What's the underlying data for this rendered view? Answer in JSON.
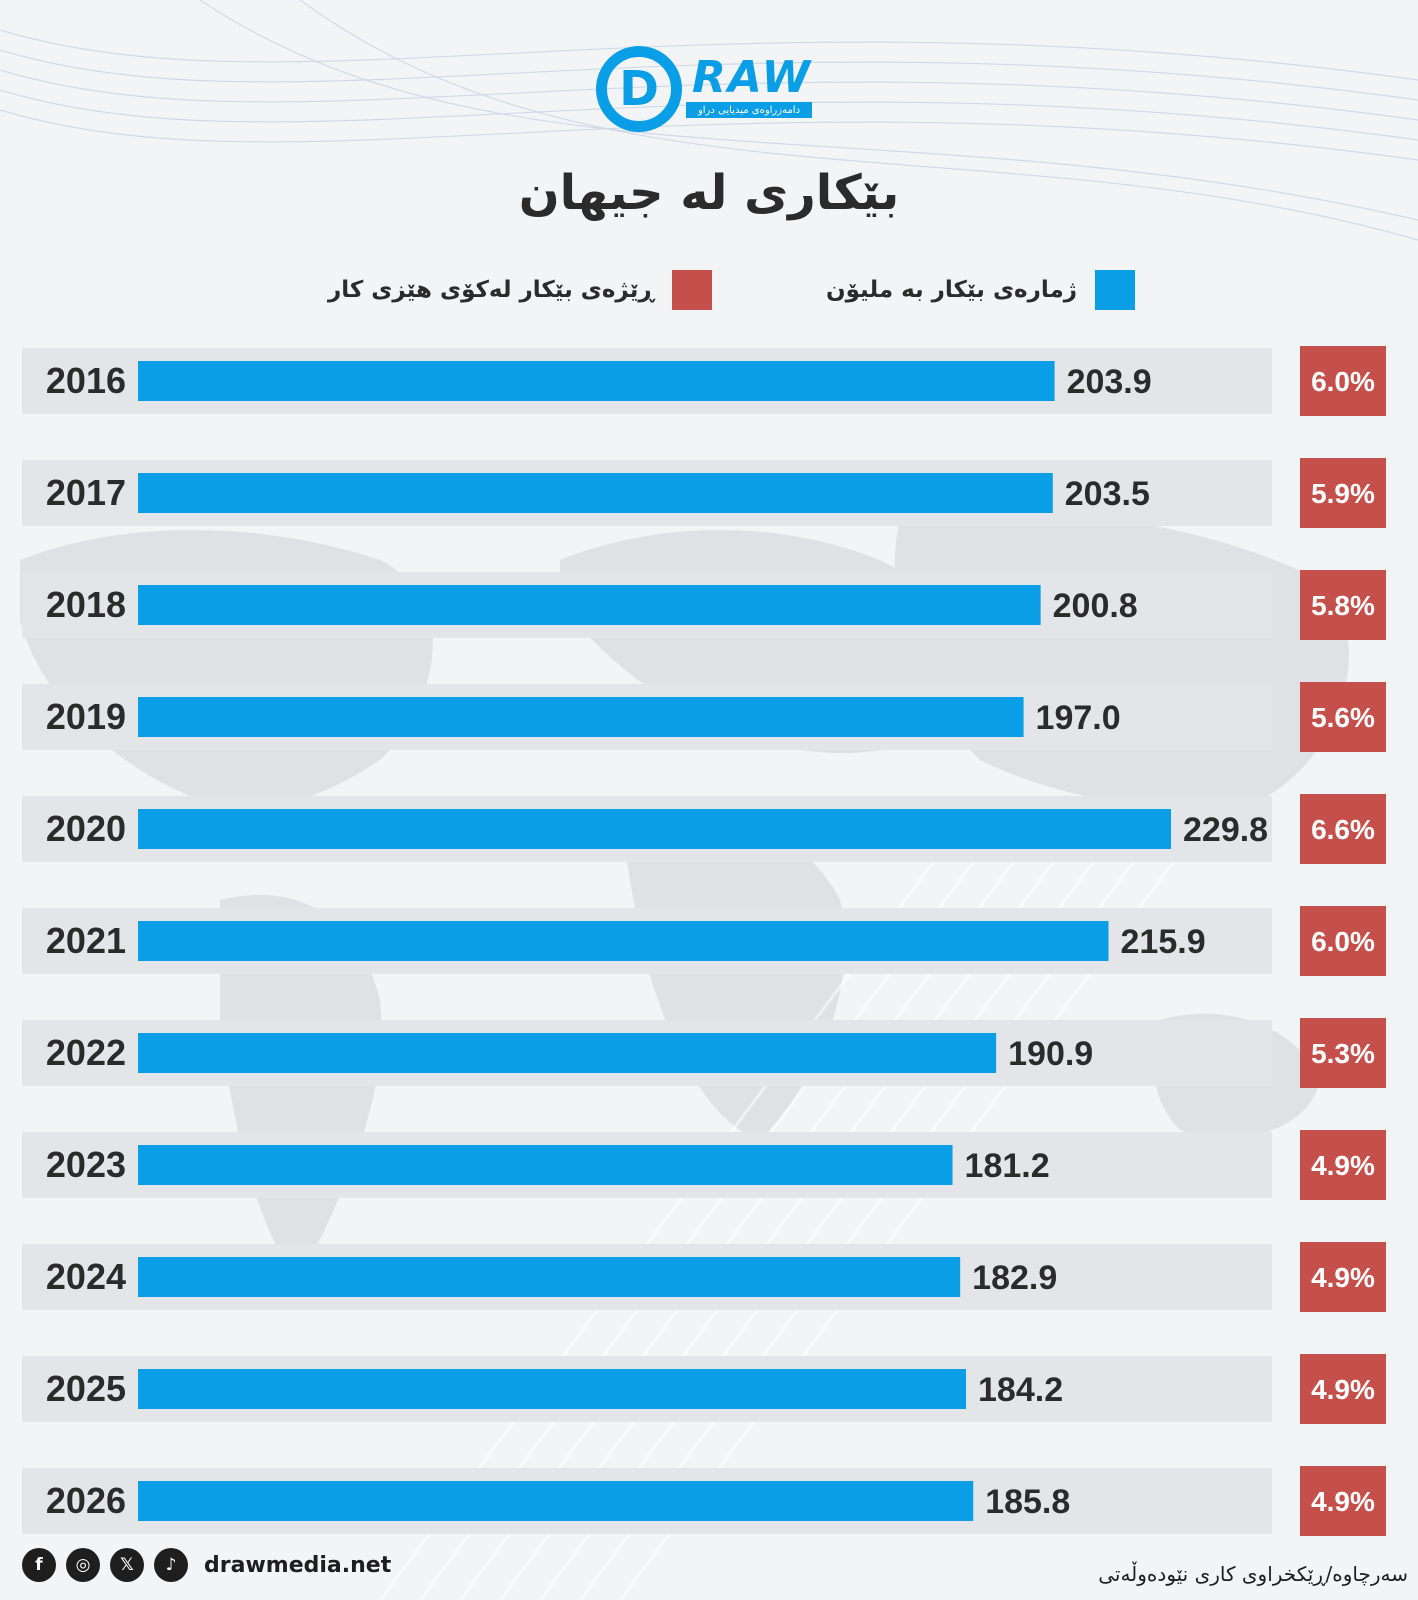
{
  "logo": {
    "wordmark": "RAW",
    "tagline": "دامەزراوەی میدیایی دراو"
  },
  "title": "بێکاری لە جیهان",
  "legend": {
    "count_label": "ژمارەی بێکار بە ملیۆن",
    "rate_label": "ڕێژەی بێکار لەکۆی هێزی کار"
  },
  "colors": {
    "count_bar": "#0a9ee6",
    "rate_box": "#c5504b",
    "row_band": "#e4e5e8"
  },
  "chart_data": {
    "type": "bar",
    "orientation": "horizontal",
    "categories": [
      "2016",
      "2017",
      "2018",
      "2019",
      "2020",
      "2021",
      "2022",
      "2023",
      "2024",
      "2025",
      "2026"
    ],
    "series": [
      {
        "name": "ژمارەی بێکار بە ملیۆن",
        "values": [
          203.9,
          203.5,
          200.8,
          197.0,
          229.8,
          215.9,
          190.9,
          181.2,
          182.9,
          184.2,
          185.8
        ],
        "labels": [
          "203.9",
          "203.5",
          "200.8",
          "197.0",
          "229.8",
          "215.9",
          "190.9",
          "181.2",
          "182.9",
          "184.2",
          "185.8"
        ]
      },
      {
        "name": "ڕێژەی بێکار لەکۆی هێزی کار",
        "values": [
          6.0,
          5.9,
          5.8,
          5.6,
          6.6,
          6.0,
          5.3,
          4.9,
          4.9,
          4.9,
          4.9
        ],
        "labels": [
          "6.0%",
          "5.9%",
          "5.8%",
          "5.6%",
          "6.6%",
          "6.0%",
          "5.3%",
          "4.9%",
          "4.9%",
          "4.9%",
          "4.9%"
        ]
      }
    ],
    "xlim": [
      0,
      229.8
    ]
  },
  "footer": {
    "social_icons": [
      "facebook-icon",
      "instagram-icon",
      "x-icon",
      "tiktok-icon"
    ],
    "social_glyphs": [
      "f",
      "◎",
      "𝕏",
      "♪"
    ],
    "website": "drawmedia.net",
    "source": "سەرچاوە/ڕێکخراوی کاری نێودەوڵەتی"
  }
}
